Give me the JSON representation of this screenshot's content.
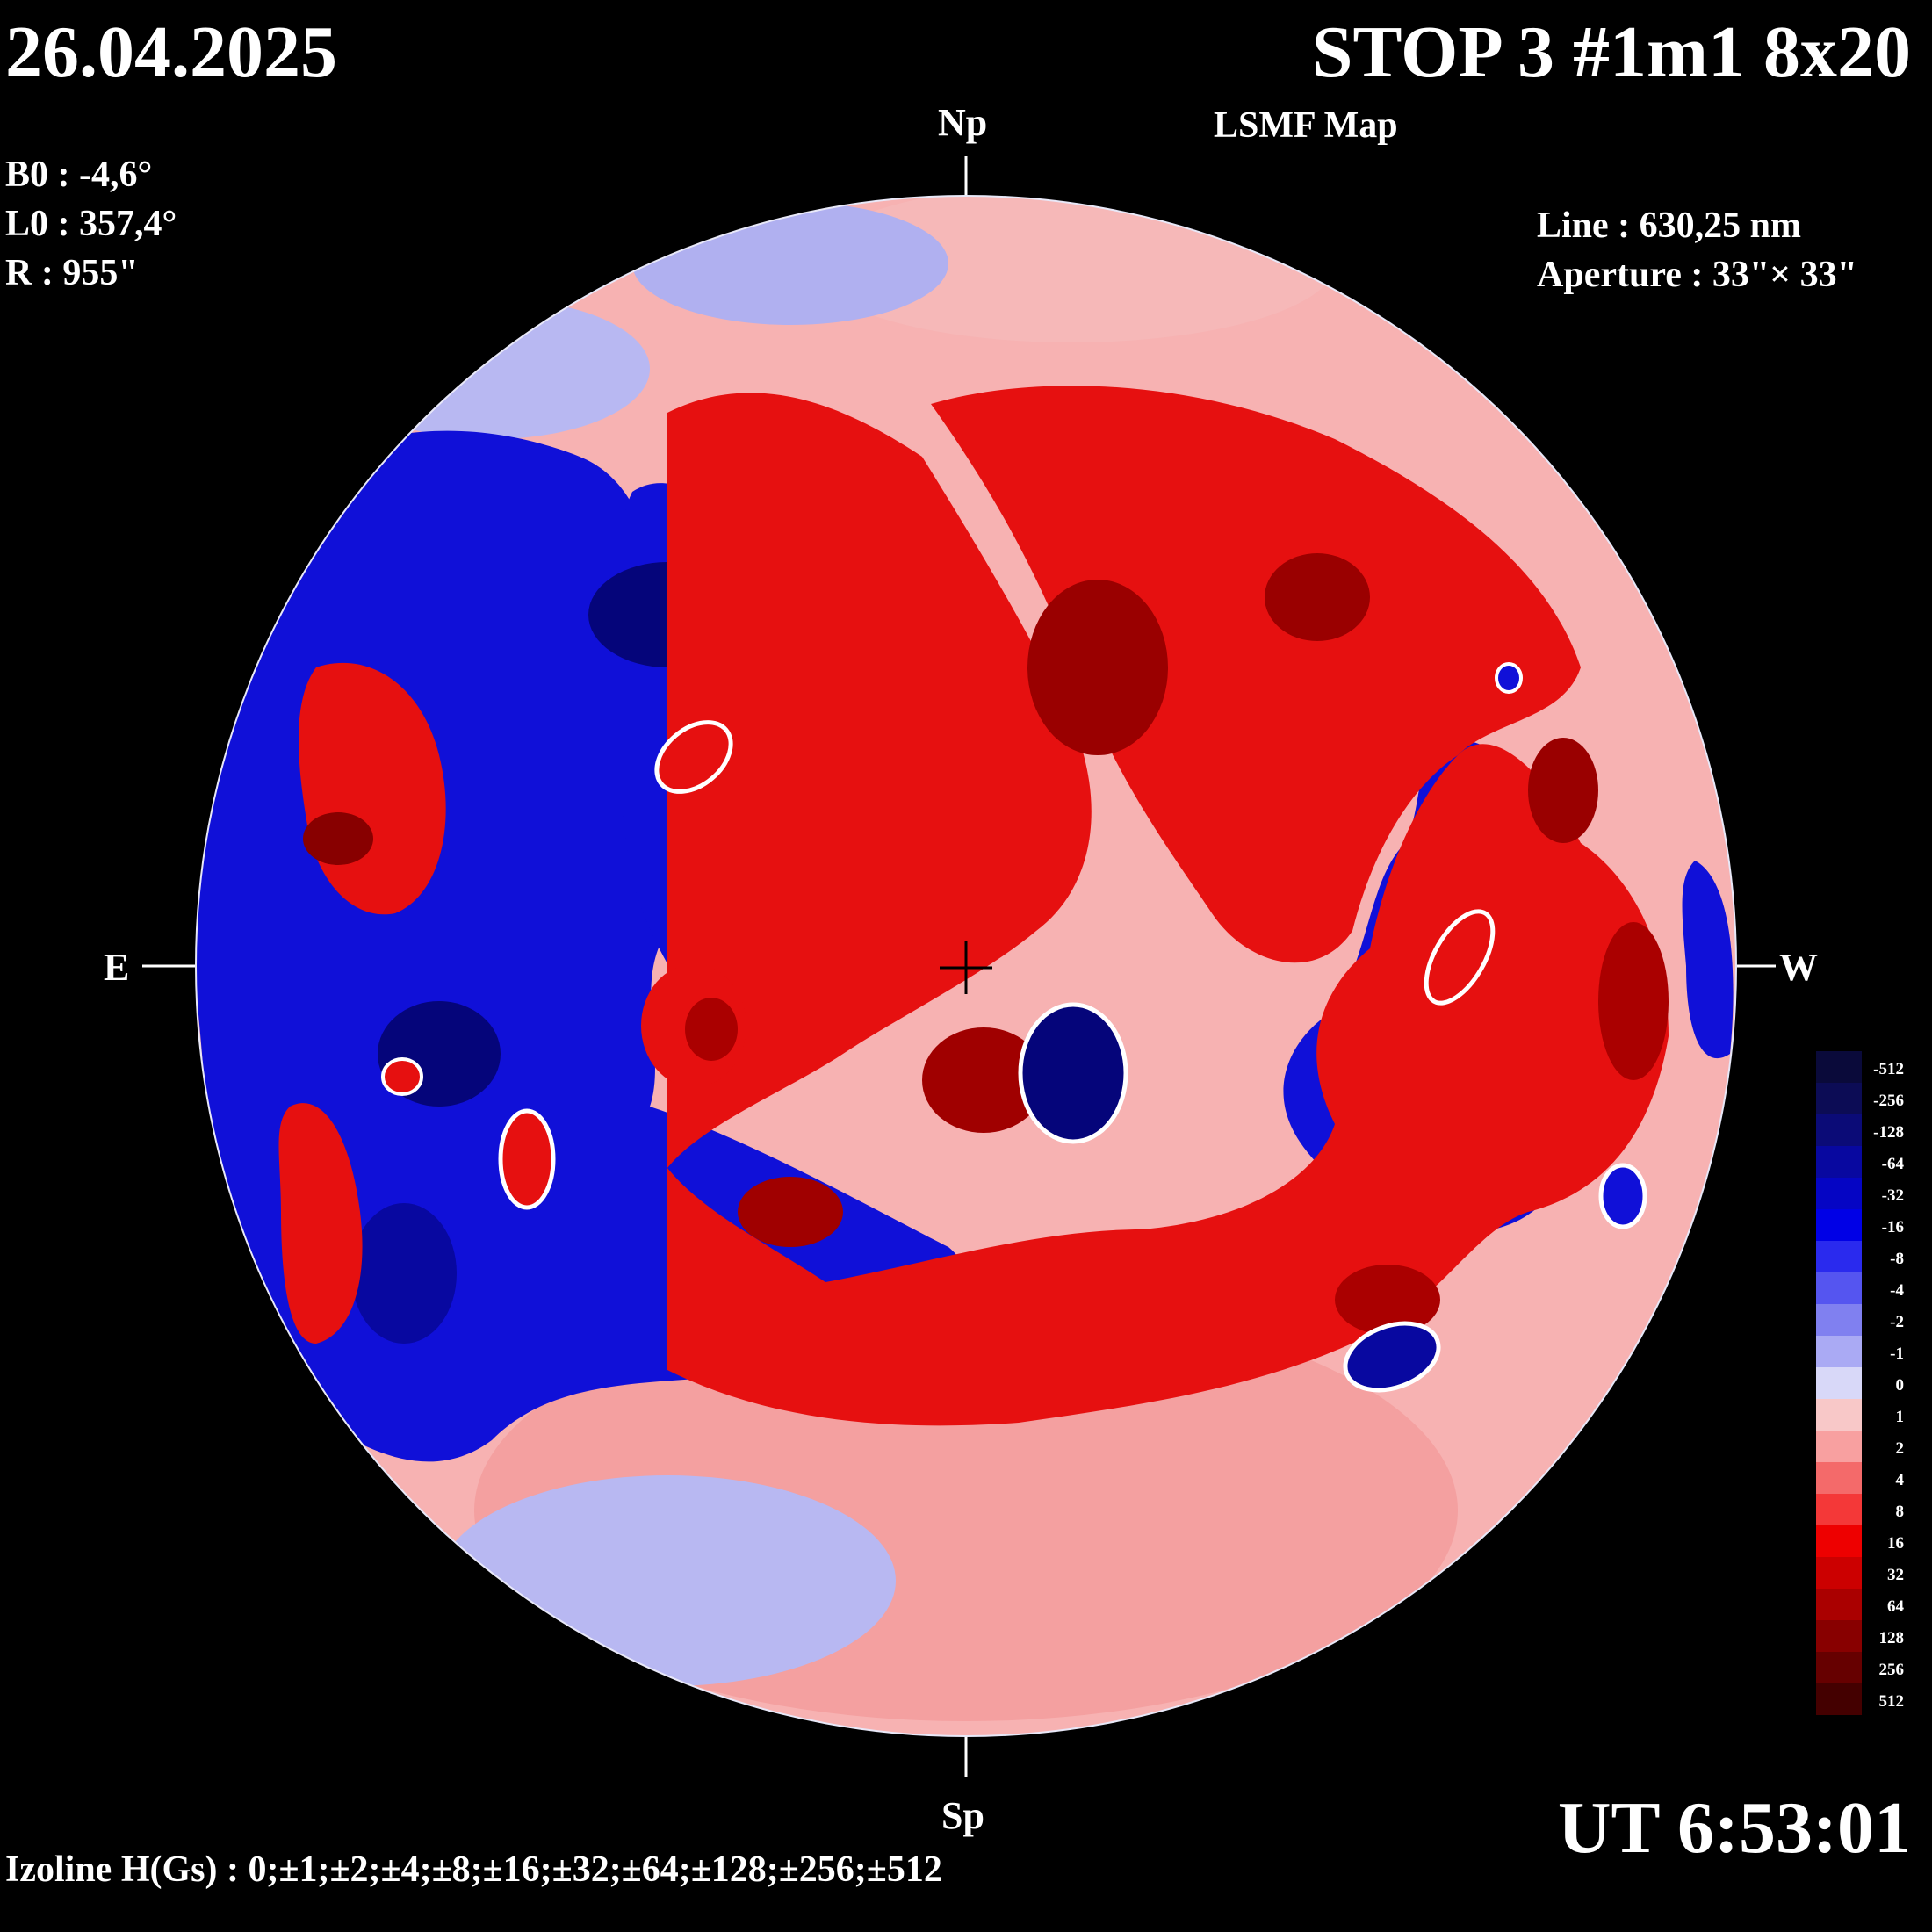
{
  "header": {
    "date": "26.04.2025",
    "title": "STOP 3 #1m1 8x20",
    "subtitle": "LSMF  Map"
  },
  "params": {
    "b0": "B0 : -4,6°",
    "l0": "L0 : 357,4°",
    "r": "R  : 955\"",
    "line": "Line :  630,25 nm",
    "aperture": "Aperture : 33\"× 33\""
  },
  "directions": {
    "north": "Np",
    "south": "Sp",
    "east": "E",
    "west": "W"
  },
  "footer": {
    "time": "UT 6:53:01",
    "izoline": "Izoline H(Gs) : 0;±1;±2;±4;±8;±16;±32;±64;±128;±256;±512"
  },
  "scale": {
    "levels": [
      {
        "label": "-512",
        "color": "#0a0a3a"
      },
      {
        "label": "-256",
        "color": "#0c0c55"
      },
      {
        "label": "-128",
        "color": "#0b0b77"
      },
      {
        "label": "-64",
        "color": "#0808a0"
      },
      {
        "label": "-32",
        "color": "#0505c4"
      },
      {
        "label": "-16",
        "color": "#0000e6"
      },
      {
        "label": "-8",
        "color": "#2a2aee"
      },
      {
        "label": "-4",
        "color": "#5555f0"
      },
      {
        "label": "-2",
        "color": "#8080f0"
      },
      {
        "label": "-1",
        "color": "#aaaaf4"
      },
      {
        "label": "0",
        "color": "#d8d8f8"
      },
      {
        "label": "1",
        "color": "#f8c8c8"
      },
      {
        "label": "2",
        "color": "#f8a0a0"
      },
      {
        "label": "4",
        "color": "#f46a6a"
      },
      {
        "label": "8",
        "color": "#f43838"
      },
      {
        "label": "16",
        "color": "#ee0000"
      },
      {
        "label": "32",
        "color": "#cc0000"
      },
      {
        "label": "64",
        "color": "#aa0000"
      },
      {
        "label": "128",
        "color": "#880000"
      },
      {
        "label": "256",
        "color": "#660000"
      },
      {
        "label": "512",
        "color": "#440000"
      }
    ]
  }
}
